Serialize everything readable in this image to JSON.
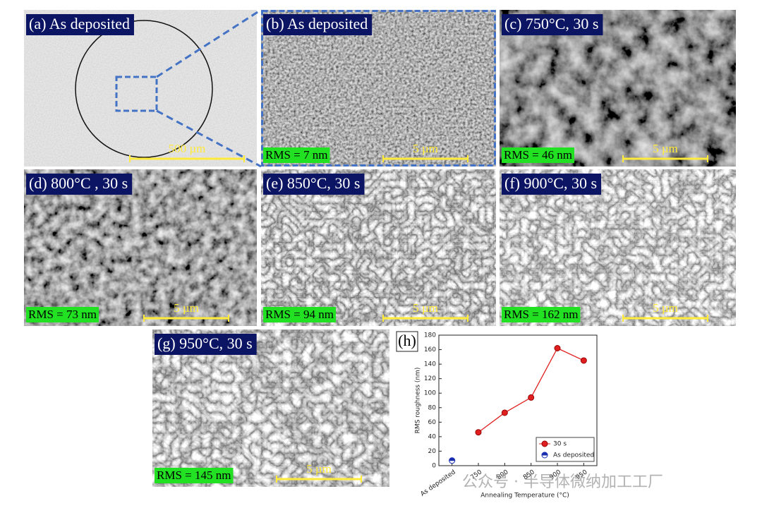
{
  "panels": [
    {
      "label": "(a) As deposited",
      "scale": "500 µm"
    },
    {
      "label": "(b) As deposited",
      "rms": "RMS = 7 nm",
      "scale": "5 µm"
    },
    {
      "label": "(c) 750°C, 30 s",
      "rms": "RMS = 46 nm",
      "scale": "5 µm"
    },
    {
      "label": "(d) 800°C , 30 s",
      "rms": "RMS = 73 nm",
      "scale": "5 µm"
    },
    {
      "label": "(e) 850°C, 30 s",
      "rms": "RMS = 94 nm",
      "scale": "5 µm"
    },
    {
      "label": "(f) 900°C, 30 s",
      "rms": "RMS = 162 nm",
      "scale": "5 µm"
    },
    {
      "label": "(g) 950°C, 30 s",
      "rms": "RMS = 145 nm",
      "scale": "5 µm"
    }
  ],
  "chart_data": {
    "type": "line",
    "panel_label": "(h)",
    "x_label": "Annealing Temperature (°C)",
    "y_label": "RMS roughness (nm)",
    "categories": [
      "As deposited",
      "750",
      "800",
      "850",
      "900",
      "950"
    ],
    "series": [
      {
        "name": "30 s",
        "color": "#e02020",
        "values": [
          null,
          46,
          73,
          94,
          162,
          145
        ]
      },
      {
        "name": "As deposited",
        "color": "#1a2fb0",
        "values": [
          7,
          null,
          null,
          null,
          null,
          null
        ]
      }
    ],
    "ylim": [
      0,
      180
    ],
    "yticks": [
      0,
      20,
      40,
      60,
      80,
      100,
      120,
      140,
      160,
      180
    ],
    "legend": "lower right"
  },
  "watermark": "公众号 · 半导体微纳加工工厂"
}
